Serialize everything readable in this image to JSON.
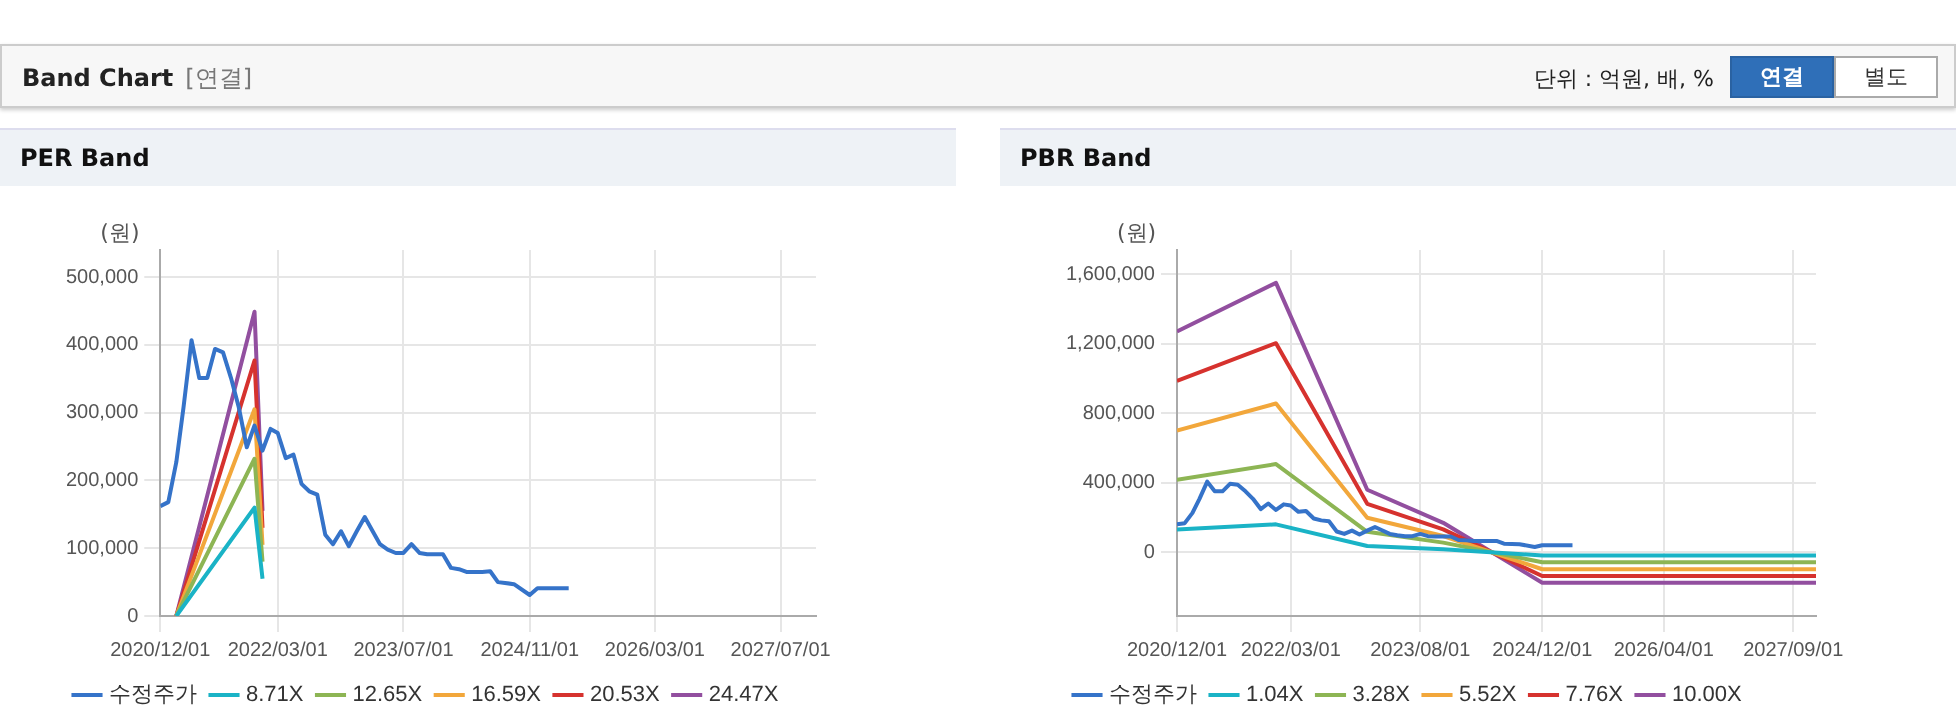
{
  "chart_data": [
    {
      "type": "line",
      "title": "PER Band",
      "ylabel": "(원)",
      "annotations": [
        "Band Chart",
        "[연결]",
        "단위 : 억원, 배, %",
        "연결",
        "별도"
      ],
      "xlim": [
        "2020-12-01",
        "2027-11-15"
      ],
      "ylim": [
        0,
        540000
      ],
      "xticks": [
        {
          "value": "2020-12-01",
          "label": "2020/12/01"
        },
        {
          "value": "2022-03-01",
          "label": "2022/03/01"
        },
        {
          "value": "2023-07-01",
          "label": "2023/07/01"
        },
        {
          "value": "2024-11-01",
          "label": "2024/11/01"
        },
        {
          "value": "2026-03-01",
          "label": "2026/03/01"
        },
        {
          "value": "2027-07-01",
          "label": "2027/07/01"
        }
      ],
      "yticks": [
        {
          "value": 0,
          "label": "0"
        },
        {
          "value": 100000,
          "label": "100,000"
        },
        {
          "value": 200000,
          "label": "200,000"
        },
        {
          "value": 300000,
          "label": "300,000"
        },
        {
          "value": 400000,
          "label": "400,000"
        },
        {
          "value": 500000,
          "label": "500,000"
        }
      ],
      "grid": true,
      "legend": "bottom",
      "marker": "none",
      "line_style": "solid",
      "series": [
        {
          "name": "수정주가",
          "color": "#3573c9",
          "x": [
            "2020-12",
            "2021-01",
            "2021-02",
            "2021-03",
            "2021-04",
            "2021-05",
            "2021-06",
            "2021-07",
            "2021-08",
            "2021-09",
            "2021-10",
            "2021-11",
            "2021-12",
            "2022-01",
            "2022-02",
            "2022-03",
            "2022-04",
            "2022-05",
            "2022-06",
            "2022-07",
            "2022-08",
            "2022-09",
            "2022-10",
            "2022-11",
            "2022-12",
            "2023-01",
            "2023-02",
            "2023-03",
            "2023-04",
            "2023-05",
            "2023-06",
            "2023-07",
            "2023-08",
            "2023-09",
            "2023-10",
            "2023-12",
            "2024-01",
            "2024-02",
            "2024-03",
            "2024-05",
            "2024-06",
            "2024-07",
            "2024-09",
            "2024-11",
            "2024-12",
            "2025-04"
          ],
          "values": [
            162000,
            168000,
            227000,
            308000,
            407000,
            351000,
            351000,
            394000,
            389000,
            351000,
            308000,
            249000,
            281000,
            244000,
            276000,
            270000,
            233000,
            238000,
            195000,
            184000,
            179000,
            120000,
            106000,
            125000,
            103000,
            125000,
            146000,
            127000,
            106000,
            98000,
            93000,
            93000,
            106000,
            93000,
            91000,
            91000,
            71000,
            69000,
            65000,
            65000,
            66000,
            50000,
            47000,
            31000,
            41000,
            41000
          ]
        },
        {
          "name": "8.71X",
          "color": "#1ab3c6",
          "x": [
            "2021-02",
            "2021-12",
            "2022-01"
          ],
          "values": [
            0,
            160000,
            55000
          ]
        },
        {
          "name": "12.65X",
          "color": "#8db554",
          "x": [
            "2021-02",
            "2021-12",
            "2022-01"
          ],
          "values": [
            0,
            232000,
            80000
          ]
        },
        {
          "name": "16.59X",
          "color": "#f2a73b",
          "x": [
            "2021-02",
            "2021-12",
            "2022-01"
          ],
          "values": [
            0,
            305000,
            105000
          ]
        },
        {
          "name": "20.53X",
          "color": "#d6322e",
          "x": [
            "2021-02",
            "2021-12",
            "2022-01"
          ],
          "values": [
            0,
            377000,
            130000
          ]
        },
        {
          "name": "24.47X",
          "color": "#924f9f",
          "x": [
            "2021-02",
            "2021-12",
            "2022-01"
          ],
          "values": [
            0,
            449000,
            155000
          ]
        }
      ]
    },
    {
      "type": "line",
      "title": "PBR Band",
      "ylabel": "(원)",
      "xlim": [
        "2020-12-01",
        "2027-12-01"
      ],
      "ylim": [
        -366000,
        1739000
      ],
      "xticks": [
        {
          "value": "2020-12-01",
          "label": "2020/12/01"
        },
        {
          "value": "2022-03-01",
          "label": "2022/03/01"
        },
        {
          "value": "2023-08-01",
          "label": "2023/08/01"
        },
        {
          "value": "2024-12-01",
          "label": "2024/12/01"
        },
        {
          "value": "2026-04-01",
          "label": "2026/04/01"
        },
        {
          "value": "2027-09-01",
          "label": "2027/09/01"
        }
      ],
      "yticks": [
        {
          "value": 0,
          "label": "0"
        },
        {
          "value": 400000,
          "label": "400,000"
        },
        {
          "value": 800000,
          "label": "800,000"
        },
        {
          "value": 1200000,
          "label": "1,200,000"
        },
        {
          "value": 1600000,
          "label": "1,600,000"
        }
      ],
      "grid": true,
      "legend": "bottom",
      "marker": "none",
      "line_style": "solid",
      "series": [
        {
          "name": "수정주가",
          "color": "#3573c9",
          "x": [
            "2020-12",
            "2021-01",
            "2021-02",
            "2021-03",
            "2021-04",
            "2021-05",
            "2021-06",
            "2021-07",
            "2021-08",
            "2021-09",
            "2021-10",
            "2021-11",
            "2021-12",
            "2022-01",
            "2022-02",
            "2022-03",
            "2022-04",
            "2022-05",
            "2022-06",
            "2022-07",
            "2022-08",
            "2022-09",
            "2022-10",
            "2022-11",
            "2022-12",
            "2023-01",
            "2023-02",
            "2023-03",
            "2023-04",
            "2023-05",
            "2023-06",
            "2023-07",
            "2023-08",
            "2023-09",
            "2023-10",
            "2023-12",
            "2024-01",
            "2024-02",
            "2024-03",
            "2024-05",
            "2024-06",
            "2024-07",
            "2024-09",
            "2024-11",
            "2024-12",
            "2025-04"
          ],
          "values": [
            162000,
            168000,
            227000,
            308000,
            407000,
            351000,
            351000,
            394000,
            389000,
            351000,
            308000,
            249000,
            281000,
            244000,
            276000,
            270000,
            233000,
            238000,
            195000,
            184000,
            179000,
            120000,
            106000,
            125000,
            103000,
            125000,
            146000,
            127000,
            106000,
            98000,
            93000,
            93000,
            106000,
            93000,
            91000,
            91000,
            71000,
            69000,
            65000,
            65000,
            66000,
            50000,
            47000,
            31000,
            41000,
            41000
          ]
        },
        {
          "name": "1.04X",
          "color": "#1ab3c6",
          "x": [
            "2020-12",
            "2022-01",
            "2023-01",
            "2023-11",
            "2024-12",
            "2027-12"
          ],
          "values": [
            132000,
            161000,
            37000,
            18000,
            -18000,
            -18000
          ]
        },
        {
          "name": "3.28X",
          "color": "#8db554",
          "x": [
            "2020-12",
            "2022-01",
            "2023-01",
            "2023-11",
            "2024-12",
            "2027-12"
          ],
          "values": [
            417000,
            508000,
            118000,
            56000,
            -57000,
            -57000
          ]
        },
        {
          "name": "5.52X",
          "color": "#f2a73b",
          "x": [
            "2020-12",
            "2022-01",
            "2023-01",
            "2023-11",
            "2024-12",
            "2027-12"
          ],
          "values": [
            701000,
            856000,
            199000,
            94000,
            -97000,
            -97000
          ]
        },
        {
          "name": "7.76X",
          "color": "#d6322e",
          "x": [
            "2020-12",
            "2022-01",
            "2023-01",
            "2023-11",
            "2024-12",
            "2027-12"
          ],
          "values": [
            986000,
            1203000,
            279000,
            132000,
            -136000,
            -136000
          ]
        },
        {
          "name": "10.00X",
          "color": "#924f9f",
          "x": [
            "2020-12",
            "2022-01",
            "2023-01",
            "2023-11",
            "2024-12",
            "2027-12"
          ],
          "values": [
            1270000,
            1550000,
            360000,
            170000,
            -175000,
            -175000
          ]
        }
      ]
    }
  ]
}
